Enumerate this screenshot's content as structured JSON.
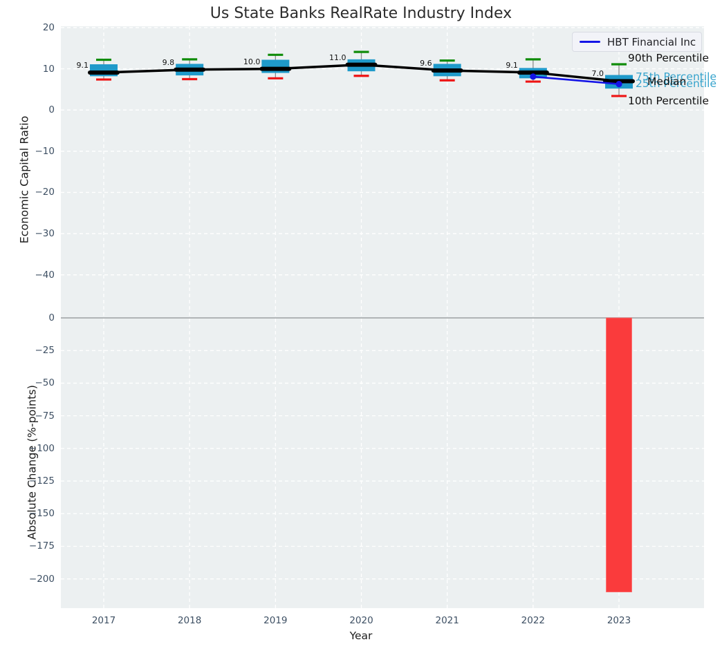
{
  "colors": {
    "plot_bg": "#ecf0f1",
    "grid": "#ffffff",
    "zero_line": "#b0b4b6",
    "box_fill": "#1f9aca",
    "median_line": "#000000",
    "p90_cap": "#108c0a",
    "p10_cap": "#ee1414",
    "whisker_stem": "#8c8c8c",
    "hbt_line": "#1414e6",
    "bar_fill": "#fa3b3c",
    "tick_text": "#3d4f63",
    "percentile_text_teal": "#35a3cc"
  },
  "chart_data": [
    {
      "type": "boxplot+line",
      "title": "Us State Banks RealRate Industry Index",
      "ylabel": "Economic Capital Ratio",
      "ylim": [
        -49.9,
        20.3
      ],
      "grid": true,
      "yticks": [
        {
          "value": 20,
          "label": "20"
        },
        {
          "value": 10,
          "label": "10"
        },
        {
          "value": 0,
          "label": "0"
        },
        {
          "value": -10,
          "label": "−10"
        },
        {
          "value": -20,
          "label": "−20"
        },
        {
          "value": -30,
          "label": "−30"
        },
        {
          "value": -40,
          "label": "−40"
        }
      ],
      "categories": [
        "2017",
        "2018",
        "2019",
        "2020",
        "2021",
        "2022",
        "2023"
      ],
      "boxes": [
        {
          "year": "2017",
          "p10": 7.4,
          "q1": 8.2,
          "median": 9.1,
          "q3": 11.1,
          "p90": 12.2,
          "median_label": "9.1"
        },
        {
          "year": "2018",
          "p10": 7.5,
          "q1": 8.4,
          "median": 9.8,
          "q3": 11.2,
          "p90": 12.3,
          "median_label": "9.8"
        },
        {
          "year": "2019",
          "p10": 7.7,
          "q1": 9.0,
          "median": 10.0,
          "q3": 12.2,
          "p90": 13.4,
          "median_label": "10.0"
        },
        {
          "year": "2020",
          "p10": 8.3,
          "q1": 9.4,
          "median": 11.0,
          "q3": 12.3,
          "p90": 14.1,
          "median_label": "11.0"
        },
        {
          "year": "2021",
          "p10": 7.2,
          "q1": 8.2,
          "median": 9.6,
          "q3": 11.2,
          "p90": 12.0,
          "median_label": "9.6"
        },
        {
          "year": "2022",
          "p10": 6.9,
          "q1": 7.7,
          "median": 9.1,
          "q3": 10.2,
          "p90": 12.3,
          "median_label": "9.1"
        },
        {
          "year": "2023",
          "p10": 3.4,
          "q1": 5.2,
          "median": 7.0,
          "q3": 8.5,
          "p90": 11.1,
          "median_label": "7.0"
        }
      ],
      "series": [
        {
          "name": "HBT Financial Inc",
          "color": "#1414e6",
          "points": [
            {
              "x": "2022",
              "y": 8.1
            },
            {
              "x": "2023",
              "y": 6.3
            }
          ]
        }
      ],
      "legend": [
        {
          "name": "HBT Financial Inc",
          "color": "#1414e6"
        }
      ],
      "legend_position": "upper right",
      "annotations": [
        "90th Percentile",
        "75th Percentile",
        "Median",
        "25th Percentile",
        "10th Percentile"
      ]
    },
    {
      "type": "bar",
      "ylabel": "Absolute Change (%-points)",
      "xlabel": "Year",
      "ylim": [
        -222.5,
        2.8
      ],
      "grid": true,
      "yticks": [
        {
          "value": 0,
          "label": "0"
        },
        {
          "value": -25,
          "label": "−25"
        },
        {
          "value": -50,
          "label": "−50"
        },
        {
          "value": -75,
          "label": "−75"
        },
        {
          "value": -100,
          "label": "−100"
        },
        {
          "value": -125,
          "label": "−125"
        },
        {
          "value": -150,
          "label": "−150"
        },
        {
          "value": -175,
          "label": "−175"
        },
        {
          "value": -200,
          "label": "−200"
        }
      ],
      "categories": [
        "2017",
        "2018",
        "2019",
        "2020",
        "2021",
        "2022",
        "2023"
      ],
      "values": [
        null,
        null,
        null,
        null,
        null,
        null,
        -210
      ]
    }
  ]
}
